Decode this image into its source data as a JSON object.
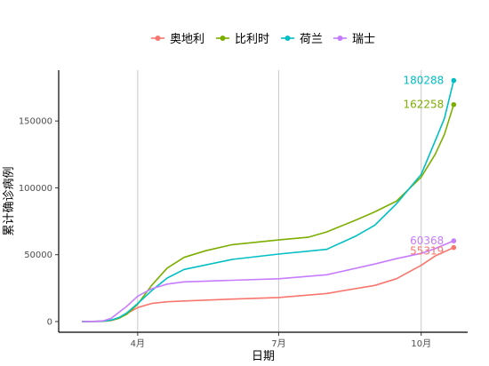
{
  "chart_data": {
    "type": "line",
    "xlabel": "日期",
    "ylabel": "累计确诊病例",
    "x_ticks": [
      {
        "label": "4月",
        "date": "2020-04-01"
      },
      {
        "label": "7月",
        "date": "2020-07-01"
      },
      {
        "label": "10月",
        "date": "2020-10-01"
      }
    ],
    "y_ticks": [
      0,
      50000,
      100000,
      150000
    ],
    "y_tick_labels": [
      "0",
      "50000",
      "100000",
      "150000"
    ],
    "xlim": [
      "2020-02-10",
      "2020-10-31"
    ],
    "ylim": [
      -8000,
      188000
    ],
    "grid": "vertical-major",
    "legend_position": "top",
    "series": [
      {
        "name": "奥地利",
        "color": "#F8766D",
        "end_label": "55319",
        "x": [
          "2020-02-25",
          "2020-03-05",
          "2020-03-10",
          "2020-03-15",
          "2020-03-20",
          "2020-03-25",
          "2020-04-01",
          "2020-04-10",
          "2020-04-20",
          "2020-05-01",
          "2020-06-01",
          "2020-07-01",
          "2020-08-01",
          "2020-09-01",
          "2020-09-15",
          "2020-10-01",
          "2020-10-10",
          "2020-10-22"
        ],
        "y": [
          0,
          50,
          200,
          800,
          2500,
          6000,
          10500,
          13500,
          14800,
          15400,
          16800,
          18000,
          21000,
          27000,
          32000,
          42000,
          49000,
          55319
        ]
      },
      {
        "name": "比利时",
        "color": "#7CAE00",
        "end_label": "162258",
        "x": [
          "2020-02-25",
          "2020-03-05",
          "2020-03-10",
          "2020-03-15",
          "2020-03-20",
          "2020-03-25",
          "2020-04-01",
          "2020-04-10",
          "2020-04-20",
          "2020-05-01",
          "2020-05-15",
          "2020-06-01",
          "2020-07-01",
          "2020-07-20",
          "2020-08-01",
          "2020-08-20",
          "2020-09-01",
          "2020-09-15",
          "2020-10-01",
          "2020-10-10",
          "2020-10-16",
          "2020-10-22"
        ],
        "y": [
          0,
          200,
          400,
          900,
          2500,
          5500,
          13000,
          27000,
          40000,
          48000,
          53000,
          57500,
          61000,
          63000,
          67000,
          76000,
          82000,
          90000,
          108000,
          125000,
          140000,
          162258
        ]
      },
      {
        "name": "荷兰",
        "color": "#00BFC4",
        "end_label": "180288",
        "x": [
          "2020-02-25",
          "2020-03-05",
          "2020-03-10",
          "2020-03-15",
          "2020-03-20",
          "2020-03-25",
          "2020-04-01",
          "2020-04-10",
          "2020-04-20",
          "2020-05-01",
          "2020-06-01",
          "2020-07-01",
          "2020-08-01",
          "2020-08-20",
          "2020-09-01",
          "2020-09-15",
          "2020-10-01",
          "2020-10-10",
          "2020-10-16",
          "2020-10-22"
        ],
        "y": [
          0,
          100,
          300,
          1100,
          3000,
          6500,
          13500,
          23000,
          32500,
          39000,
          46500,
          50500,
          54000,
          64000,
          72000,
          88000,
          110000,
          135000,
          152000,
          180288
        ]
      },
      {
        "name": "瑞士",
        "color": "#C77CFF",
        "end_label": "60368",
        "x": [
          "2020-02-25",
          "2020-03-05",
          "2020-03-10",
          "2020-03-15",
          "2020-03-20",
          "2020-03-25",
          "2020-04-01",
          "2020-04-10",
          "2020-04-20",
          "2020-05-01",
          "2020-06-01",
          "2020-07-01",
          "2020-08-01",
          "2020-09-01",
          "2020-09-15",
          "2020-10-01",
          "2020-10-10",
          "2020-10-22"
        ],
        "y": [
          0,
          200,
          600,
          2500,
          7000,
          11500,
          19000,
          24500,
          28000,
          29700,
          30900,
          32000,
          35000,
          43000,
          47000,
          51000,
          54500,
          60368
        ]
      }
    ]
  }
}
